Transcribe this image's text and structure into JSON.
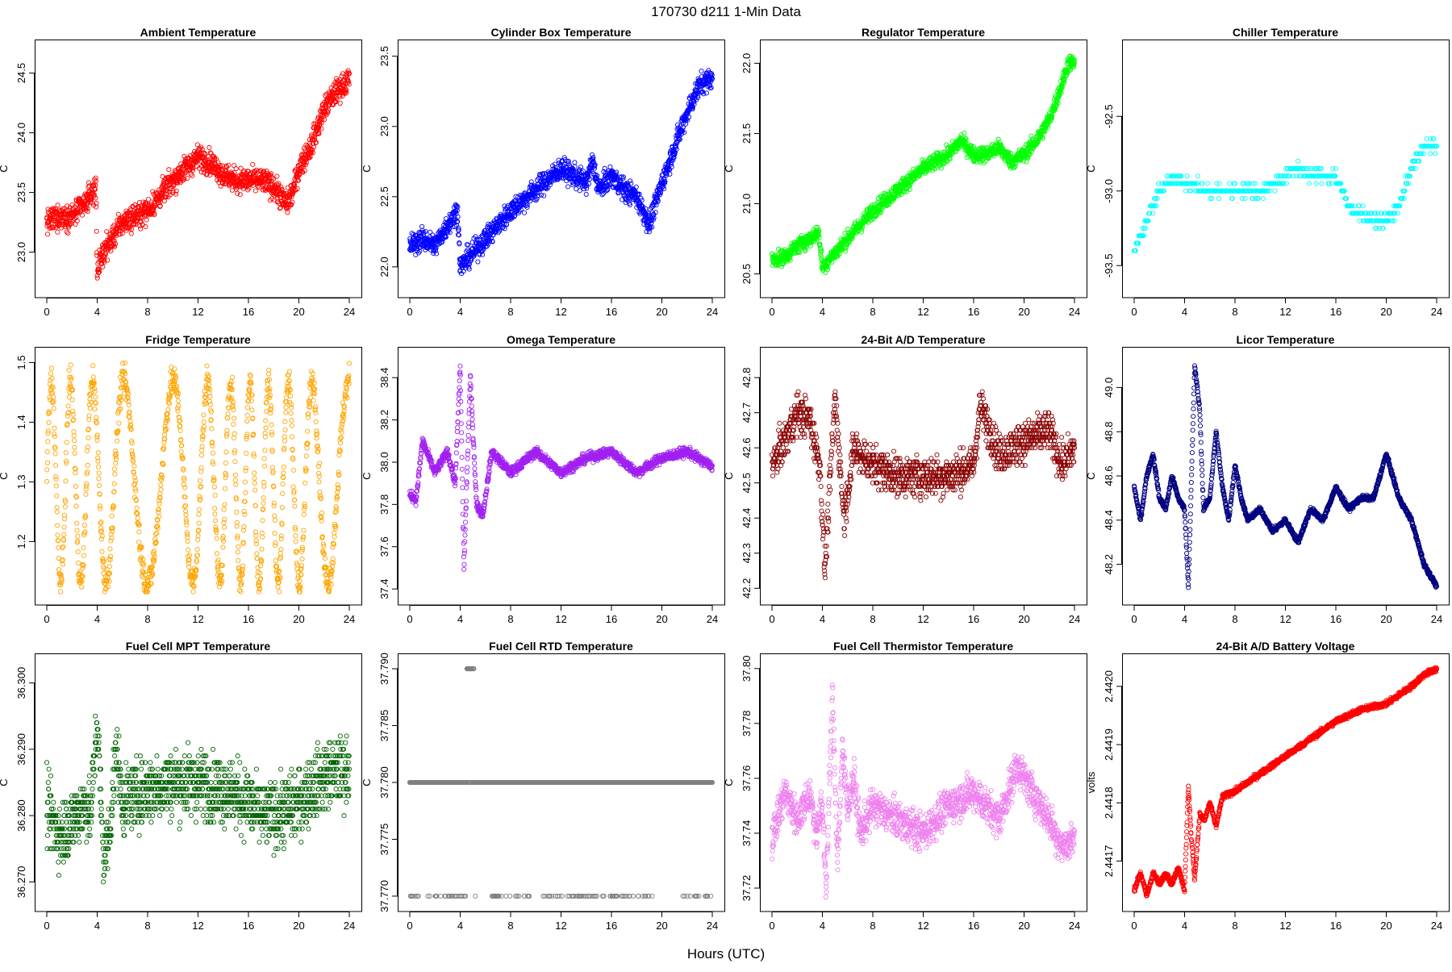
{
  "figure": {
    "title": "170730    d211    1-Min Data",
    "xlabel": "Hours (UTC)"
  },
  "chart_data": [
    {
      "type": "scatter",
      "title": "Ambient Temperature",
      "ylabel": "C",
      "color": "#ff0000",
      "xlim": [
        0,
        24
      ],
      "xticks": [
        "0",
        "4",
        "8",
        "12",
        "16",
        "20",
        "24"
      ],
      "ylim": [
        22.7,
        24.7
      ],
      "yticks": [
        "23.0",
        "23.5",
        "24.0",
        "24.5"
      ],
      "spread": 0.09,
      "points_per_hour": 60,
      "series": [
        {
          "x": [
            0,
            1,
            2,
            3,
            3.9,
            4.0,
            4.5,
            6,
            8,
            10,
            12,
            13,
            14,
            15,
            16,
            17,
            18,
            19,
            19.5,
            20,
            21,
            22,
            23,
            24
          ],
          "y": [
            23.25,
            23.3,
            23.3,
            23.4,
            23.55,
            22.85,
            23.0,
            23.25,
            23.35,
            23.6,
            23.8,
            23.75,
            23.65,
            23.6,
            23.6,
            23.6,
            23.55,
            23.4,
            23.5,
            23.7,
            23.9,
            24.2,
            24.35,
            24.45
          ]
        }
      ]
    },
    {
      "type": "scatter",
      "title": "Cylinder Box Temperature",
      "ylabel": "C",
      "color": "#0000ff",
      "xlim": [
        0,
        24
      ],
      "xticks": [
        "0",
        "4",
        "8",
        "12",
        "16",
        "20",
        "24"
      ],
      "ylim": [
        21.85,
        23.55
      ],
      "yticks": [
        "22.0",
        "22.5",
        "23.0",
        "23.5"
      ],
      "spread": 0.07,
      "points_per_hour": 60,
      "series": [
        {
          "x": [
            0,
            1,
            2,
            3,
            3.8,
            4.0,
            4.5,
            6,
            8,
            10,
            12,
            13,
            14,
            14.5,
            15,
            16,
            17,
            18,
            19,
            20,
            21,
            22,
            23,
            24
          ],
          "y": [
            22.15,
            22.2,
            22.15,
            22.3,
            22.4,
            22.0,
            22.05,
            22.2,
            22.4,
            22.55,
            22.7,
            22.65,
            22.6,
            22.75,
            22.55,
            22.65,
            22.55,
            22.5,
            22.3,
            22.6,
            22.85,
            23.1,
            23.3,
            23.35
          ]
        }
      ]
    },
    {
      "type": "scatter",
      "title": "Regulator Temperature",
      "ylabel": "C",
      "color": "#00ff00",
      "xlim": [
        0,
        24
      ],
      "xticks": [
        "0",
        "4",
        "8",
        "12",
        "16",
        "20",
        "24"
      ],
      "ylim": [
        20.4,
        22.1
      ],
      "yticks": [
        "20.5",
        "21.0",
        "21.5",
        "22.0"
      ],
      "spread": 0.05,
      "points_per_hour": 60,
      "series": [
        {
          "x": [
            0,
            1,
            2,
            3,
            3.7,
            4.0,
            4.5,
            6,
            8,
            10,
            12,
            13,
            14,
            15,
            16,
            17,
            18,
            19,
            20,
            21,
            22,
            23,
            23.5,
            24
          ],
          "y": [
            20.6,
            20.62,
            20.7,
            20.75,
            20.8,
            20.55,
            20.6,
            20.75,
            20.95,
            21.1,
            21.25,
            21.3,
            21.35,
            21.45,
            21.35,
            21.35,
            21.4,
            21.3,
            21.35,
            21.45,
            21.6,
            21.85,
            22.0,
            22.0
          ]
        }
      ]
    },
    {
      "type": "scatter",
      "title": "Chiller Temperature",
      "ylabel": "C",
      "color": "#00ffff",
      "xlim": [
        0,
        24
      ],
      "xticks": [
        "0",
        "4",
        "8",
        "12",
        "16",
        "20",
        "24"
      ],
      "ylim": [
        -93.65,
        -92.05
      ],
      "yticks": [
        "-93.5",
        "-93.0",
        "-92.5"
      ],
      "quantize": 0.05,
      "spread": 0.04,
      "points_per_hour": 25,
      "series": [
        {
          "x": [
            0,
            1,
            2,
            3,
            4,
            6,
            8,
            10,
            12,
            13,
            14,
            16,
            17,
            18,
            19,
            20,
            21,
            22,
            23,
            24
          ],
          "y": [
            -93.4,
            -93.2,
            -93.0,
            -92.9,
            -92.95,
            -93.0,
            -93.0,
            -93.0,
            -92.9,
            -92.85,
            -92.9,
            -92.9,
            -93.1,
            -93.15,
            -93.2,
            -93.2,
            -93.1,
            -92.85,
            -92.7,
            -92.7
          ]
        }
      ]
    },
    {
      "type": "scatter",
      "title": "Fridge Temperature",
      "ylabel": "C",
      "color": "#ffa500",
      "xlim": [
        0,
        24
      ],
      "xticks": [
        "0",
        "4",
        "8",
        "12",
        "16",
        "20",
        "24"
      ],
      "ylim": [
        1.11,
        1.51
      ],
      "yticks": [
        "1.2",
        "1.3",
        "1.4",
        "1.5"
      ],
      "pattern": "cycle",
      "points_per_hour": 50,
      "series": [
        {
          "x": [
            0,
            24
          ],
          "y": [
            1.13,
            1.47
          ]
        }
      ]
    },
    {
      "type": "scatter",
      "title": "Omega Temperature",
      "ylabel": "C",
      "color": "#a020f0",
      "xlim": [
        0,
        24
      ],
      "xticks": [
        "0",
        "4",
        "8",
        "12",
        "16",
        "20",
        "24"
      ],
      "ylim": [
        37.37,
        38.5
      ],
      "yticks": [
        "37.4",
        "37.6",
        "37.8",
        "38.0",
        "38.2",
        "38.4"
      ],
      "spread": 0.02,
      "points_per_hour": 60,
      "series": [
        {
          "x": [
            0,
            0.5,
            1,
            2,
            3,
            3.6,
            4.0,
            4.3,
            4.8,
            5.3,
            5.8,
            6.5,
            8,
            10,
            12,
            14,
            16,
            18,
            20,
            22,
            24
          ],
          "y": [
            37.85,
            37.82,
            38.1,
            37.95,
            38.05,
            37.9,
            38.45,
            37.5,
            38.4,
            37.8,
            37.75,
            38.05,
            37.95,
            38.05,
            37.95,
            38.02,
            38.05,
            37.95,
            38.02,
            38.05,
            37.98
          ]
        }
      ]
    },
    {
      "type": "scatter",
      "title": "24-Bit A/D Temperature",
      "ylabel": "C",
      "color": "#8b0000",
      "xlim": [
        0,
        24
      ],
      "xticks": [
        "0",
        "4",
        "8",
        "12",
        "16",
        "20",
        "24"
      ],
      "ylim": [
        42.18,
        42.86
      ],
      "yticks": [
        "42.2",
        "42.3",
        "42.4",
        "42.5",
        "42.6",
        "42.7",
        "42.8"
      ],
      "quantize": 0.01,
      "spread": 0.05,
      "points_per_hour": 60,
      "series": [
        {
          "x": [
            0,
            1,
            2,
            3,
            3.8,
            4.2,
            5,
            5.7,
            6.5,
            8,
            10,
            12,
            14,
            16,
            16.5,
            18,
            20,
            22,
            23,
            24
          ],
          "y": [
            42.55,
            42.62,
            42.7,
            42.68,
            42.55,
            42.25,
            42.75,
            42.4,
            42.6,
            42.55,
            42.52,
            42.52,
            42.52,
            42.55,
            42.72,
            42.58,
            42.62,
            42.65,
            42.55,
            42.6
          ]
        }
      ]
    },
    {
      "type": "scatter",
      "title": "Licor Temperature",
      "ylabel": "C",
      "color": "#000080",
      "xlim": [
        0,
        24
      ],
      "xticks": [
        "0",
        "4",
        "8",
        "12",
        "16",
        "20",
        "24"
      ],
      "ylim": [
        48.06,
        49.14
      ],
      "yticks": [
        "48.2",
        "48.4",
        "48.6",
        "48.8",
        "49.0"
      ],
      "spread": 0.01,
      "points_per_hour": 60,
      "series": [
        {
          "x": [
            0,
            0.5,
            1,
            1.5,
            2,
            2.5,
            3,
            3.5,
            4.0,
            4.3,
            4.8,
            5.2,
            5.5,
            6,
            6.5,
            7,
            7.5,
            8,
            8.5,
            9,
            10,
            11,
            12,
            13,
            14,
            15,
            16,
            17,
            18,
            19,
            20,
            21,
            22,
            23,
            24
          ],
          "y": [
            48.55,
            48.4,
            48.6,
            48.7,
            48.5,
            48.45,
            48.6,
            48.5,
            48.45,
            48.1,
            49.1,
            48.9,
            48.45,
            48.5,
            48.8,
            48.55,
            48.4,
            48.65,
            48.5,
            48.4,
            48.45,
            48.35,
            48.4,
            48.3,
            48.45,
            48.4,
            48.55,
            48.45,
            48.5,
            48.5,
            48.7,
            48.5,
            48.4,
            48.2,
            48.1
          ]
        }
      ]
    },
    {
      "type": "scatter",
      "title": "Fuel Cell MPT Temperature",
      "ylabel": "C",
      "color": "#006400",
      "xlim": [
        0,
        24
      ],
      "xticks": [
        "0",
        "4",
        "8",
        "12",
        "16",
        "20",
        "24"
      ],
      "ylim": [
        36.267,
        36.303
      ],
      "yticks": [
        "36.270",
        "36.280",
        "36.290",
        "36.300"
      ],
      "quantize": 0.001,
      "spread": 0.0045,
      "points_per_hour": 60,
      "series": [
        {
          "x": [
            0,
            1,
            2,
            3,
            3.5,
            4.0,
            4.5,
            5,
            5.5,
            6,
            8,
            10,
            12,
            14,
            16,
            17,
            18,
            20,
            22,
            24
          ],
          "y": [
            36.281,
            36.277,
            36.279,
            36.282,
            36.28,
            36.295,
            36.273,
            36.278,
            36.29,
            36.282,
            36.284,
            36.285,
            36.285,
            36.284,
            36.282,
            36.28,
            36.28,
            36.282,
            36.286,
            36.287
          ]
        }
      ]
    },
    {
      "type": "scatter",
      "title": "Fuel Cell RTD Temperature",
      "ylabel": "C",
      "color": "#808080",
      "xlim": [
        0,
        24
      ],
      "xticks": [
        "0",
        "4",
        "8",
        "12",
        "16",
        "20",
        "24"
      ],
      "ylim": [
        37.7695,
        37.7905
      ],
      "yticks": [
        "37.770",
        "37.775",
        "37.780",
        "37.785",
        "37.790"
      ],
      "pattern": "levels",
      "levels": [
        37.77,
        37.78,
        37.79
      ],
      "points_per_hour": 60,
      "series": [
        {
          "x": [
            0,
            24
          ],
          "y": [
            37.78,
            37.78
          ]
        }
      ]
    },
    {
      "type": "scatter",
      "title": "Fuel Cell Thermistor Temperature",
      "ylabel": "C",
      "color": "#ee82ee",
      "xlim": [
        0,
        24
      ],
      "xticks": [
        "0",
        "4",
        "8",
        "12",
        "16",
        "20",
        "24"
      ],
      "ylim": [
        37.715,
        37.802
      ],
      "yticks": [
        "37.72",
        "37.74",
        "37.76",
        "37.78",
        "37.80"
      ],
      "spread": 0.006,
      "points_per_hour": 60,
      "series": [
        {
          "x": [
            0,
            1,
            2,
            3,
            3.5,
            4.0,
            4.3,
            4.8,
            5.2,
            5.6,
            6,
            6.5,
            7,
            8,
            10,
            12,
            14,
            16,
            18,
            19.5,
            20,
            22,
            23,
            24
          ],
          "y": [
            37.738,
            37.755,
            37.745,
            37.755,
            37.74,
            37.75,
            37.72,
            37.79,
            37.73,
            37.77,
            37.75,
            37.76,
            37.74,
            37.75,
            37.745,
            37.74,
            37.75,
            37.755,
            37.745,
            37.765,
            37.76,
            37.745,
            37.735,
            37.738
          ]
        }
      ]
    },
    {
      "type": "scatter",
      "title": "24-Bit A/D Battery Voltage",
      "ylabel": "volts",
      "color": "#ff0000",
      "xlim": [
        0,
        24
      ],
      "xticks": [
        "0",
        "4",
        "8",
        "12",
        "16",
        "20",
        "24"
      ],
      "ylim": [
        2.44163,
        2.44204
      ],
      "yticks": [
        "2.4417",
        "2.4418",
        "2.4419",
        "2.4420"
      ],
      "spread": 4e-06,
      "points_per_hour": 60,
      "series": [
        {
          "x": [
            0,
            0.5,
            1,
            1.5,
            2,
            2.5,
            3,
            3.5,
            4.0,
            4.3,
            4.5,
            4.8,
            5.2,
            5.6,
            6,
            6.5,
            7,
            8,
            10,
            12,
            14,
            16,
            18,
            20,
            22,
            23,
            24
          ],
          "y": [
            2.44165,
            2.44168,
            2.44164,
            2.44168,
            2.44166,
            2.44168,
            2.44166,
            2.44169,
            2.44165,
            2.44183,
            2.44175,
            2.44167,
            2.44178,
            2.44177,
            2.4418,
            2.44176,
            2.44181,
            2.44182,
            2.44185,
            2.44188,
            2.44191,
            2.44194,
            2.44196,
            2.44197,
            2.442,
            2.44202,
            2.44203
          ]
        }
      ]
    }
  ]
}
